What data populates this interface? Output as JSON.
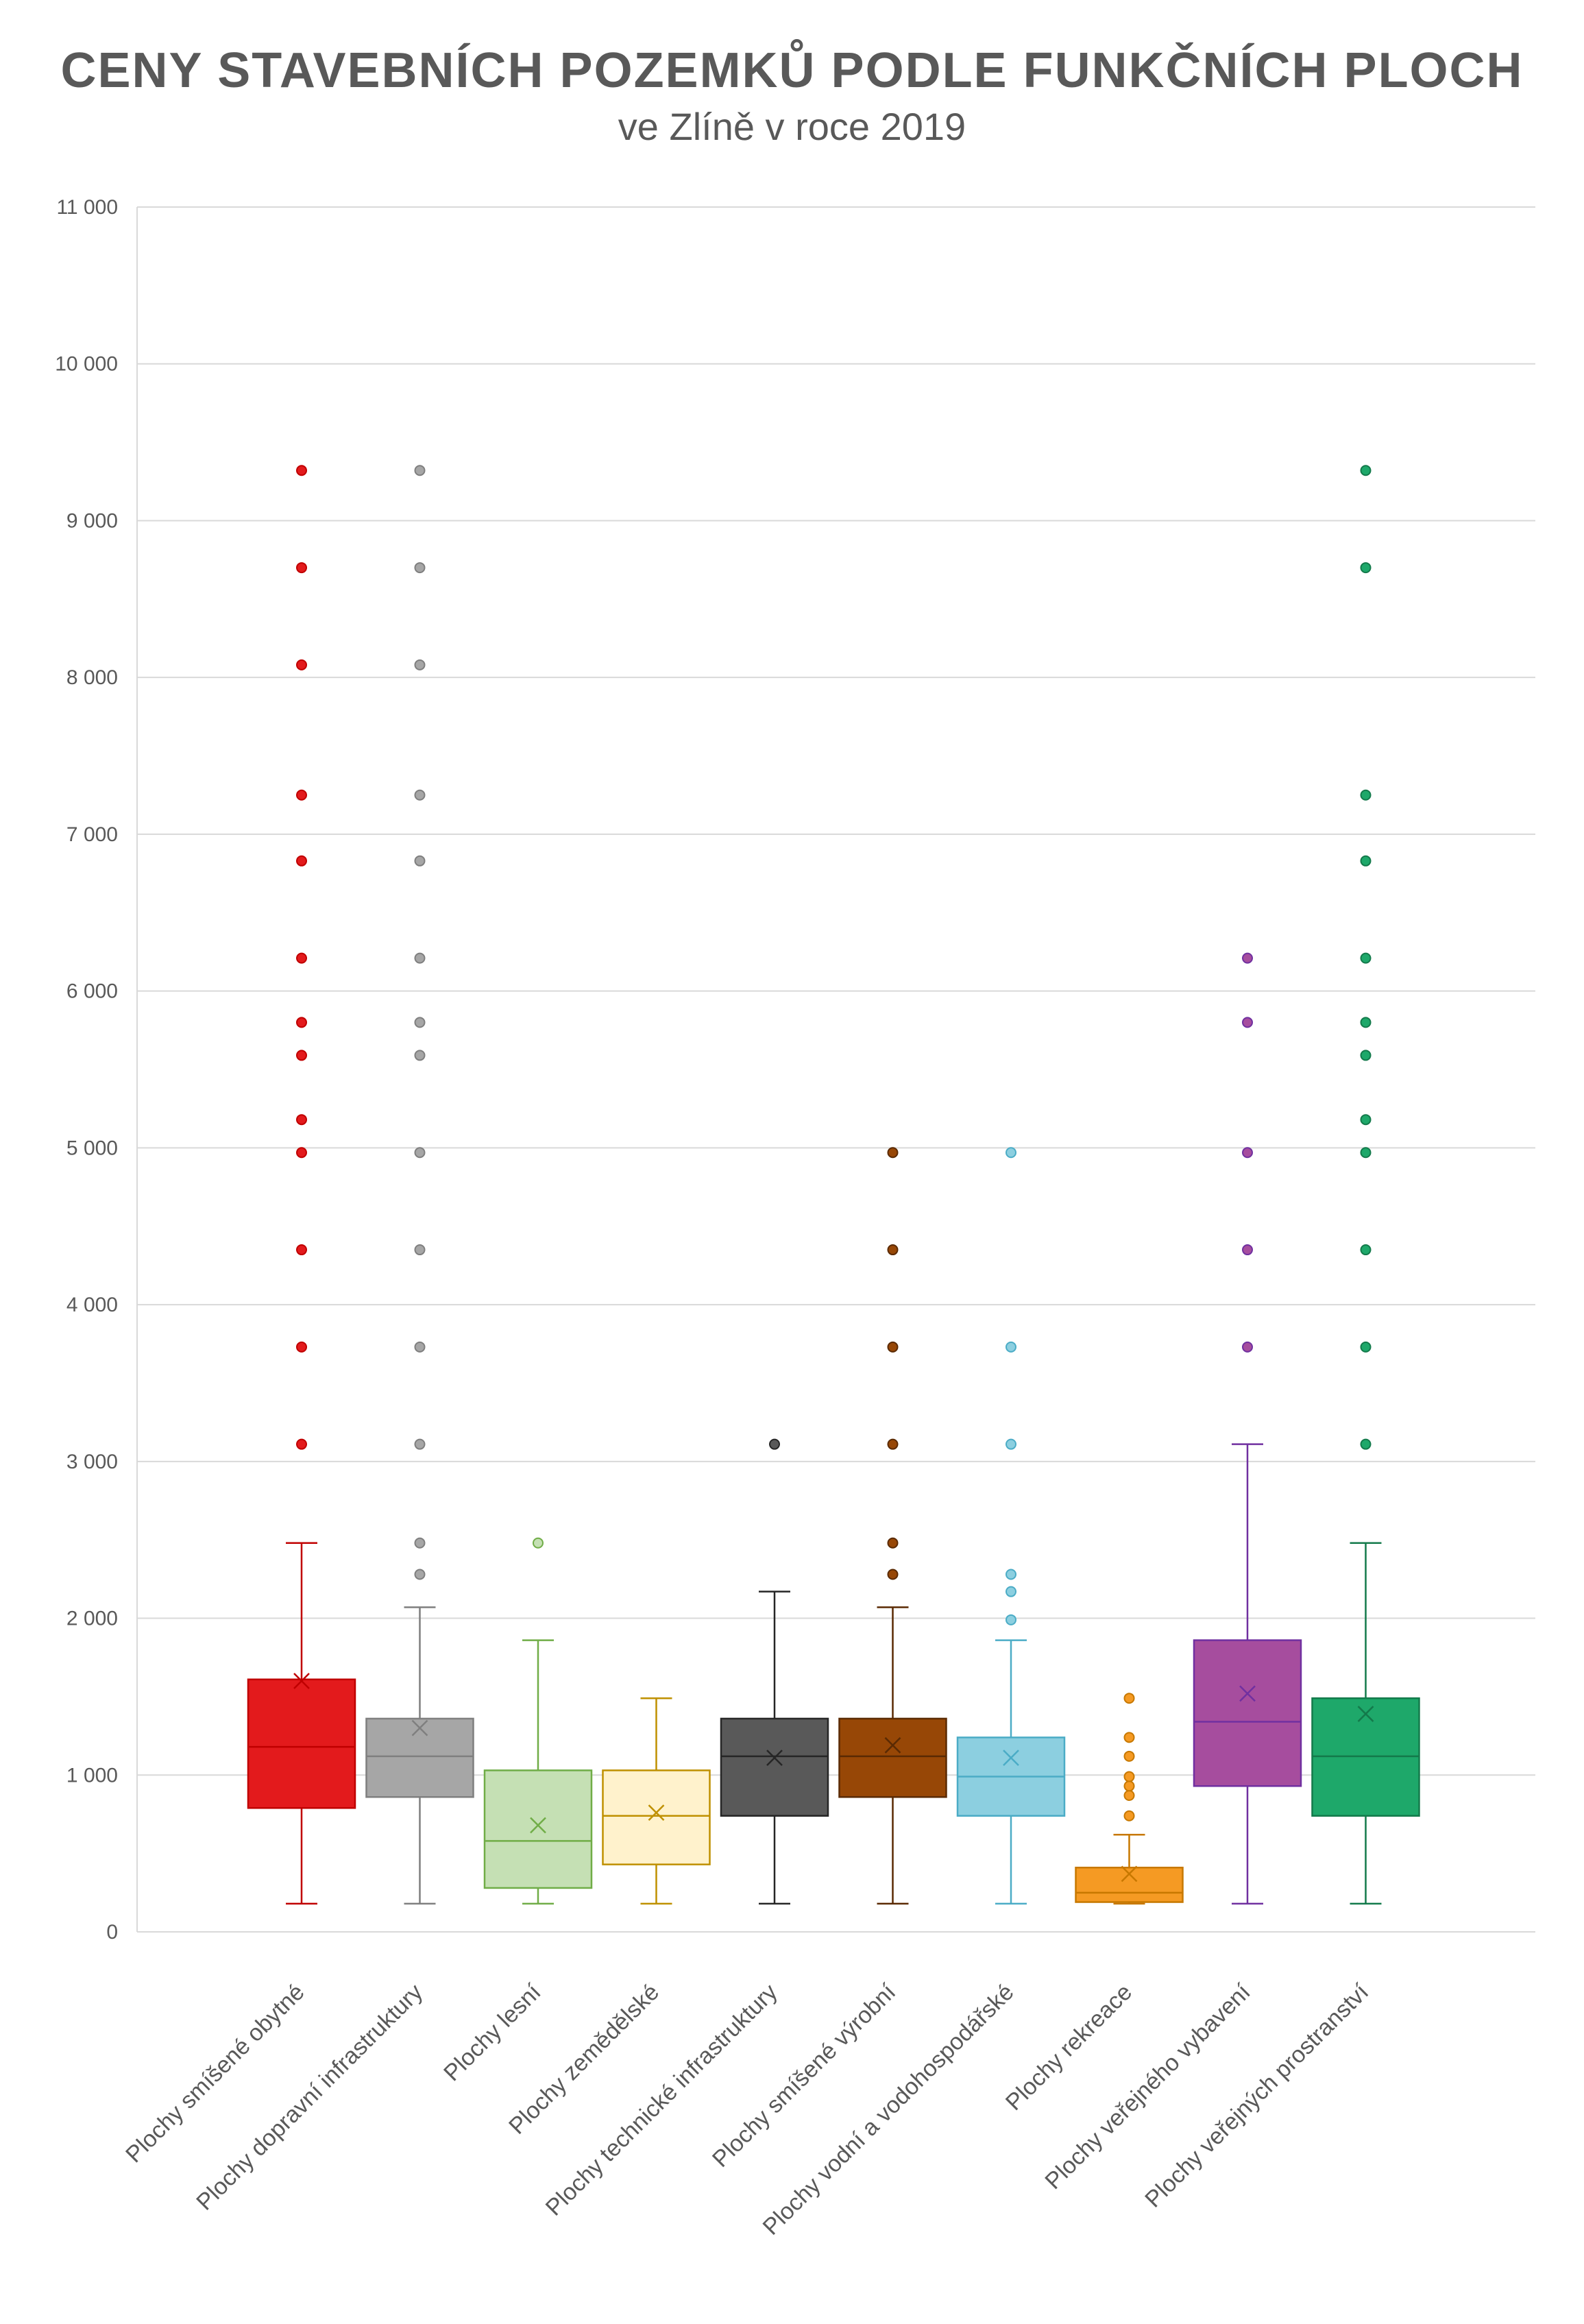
{
  "chart_data": {
    "type": "boxplot",
    "title": "CENY STAVEBNÍCH POZEMKŮ PODLE FUNKČNÍCH PLOCH",
    "subtitle": "ve Zlíně v roce 2019",
    "xlabel": "",
    "ylabel": "",
    "ylim": [
      0,
      11000
    ],
    "y_ticks": [
      {
        "value": 0,
        "label": "0"
      },
      {
        "value": 1000,
        "label": "1 000"
      },
      {
        "value": 2000,
        "label": "2 000"
      },
      {
        "value": 3000,
        "label": "3 000"
      },
      {
        "value": 4000,
        "label": "4 000"
      },
      {
        "value": 5000,
        "label": "5 000"
      },
      {
        "value": 6000,
        "label": "6 000"
      },
      {
        "value": 7000,
        "label": "7 000"
      },
      {
        "value": 8000,
        "label": "8 000"
      },
      {
        "value": 9000,
        "label": "9 000"
      },
      {
        "value": 10000,
        "label": "10 000"
      },
      {
        "value": 11000,
        "label": "11 000"
      }
    ],
    "grid": true,
    "categories": [
      "Plochy smíšené obytné",
      "Plochy dopravní infrastruktury",
      "Plochy lesní",
      "Plochy zemědělské",
      "Plochy technické infrastruktury",
      "Plochy smíšené výrobní",
      "Plochy vodní a vodohospodářské",
      "Plochy rekreace",
      "Plochy veřejného vybavení",
      "Plochy veřejných prostranství"
    ],
    "series": [
      {
        "color": "#e31a1c",
        "stroke": "#c00000",
        "min": 180,
        "q1": 790,
        "median": 1180,
        "q3": 1610,
        "max": 2480,
        "mean": 1600,
        "outliers": [
          3110,
          3730,
          4350,
          4970,
          5180,
          5590,
          5800,
          6210,
          6830,
          7250,
          8080,
          8700,
          9320
        ]
      },
      {
        "color": "#a6a6a6",
        "stroke": "#7f7f7f",
        "min": 180,
        "q1": 860,
        "median": 1120,
        "q3": 1360,
        "max": 2070,
        "mean": 1300,
        "outliers": [
          2280,
          2480,
          3110,
          3730,
          4350,
          4970,
          5590,
          5800,
          6210,
          6830,
          7250,
          8080,
          8700,
          9320
        ]
      },
      {
        "color": "#c5e0b4",
        "stroke": "#70ad47",
        "min": 180,
        "q1": 280,
        "median": 580,
        "q3": 1030,
        "max": 1860,
        "mean": 680,
        "outliers": [
          2480
        ]
      },
      {
        "color": "#fff2cc",
        "stroke": "#bf9000",
        "min": 180,
        "q1": 430,
        "median": 740,
        "q3": 1030,
        "max": 1490,
        "mean": 760,
        "outliers": []
      },
      {
        "color": "#595959",
        "stroke": "#262626",
        "min": 180,
        "q1": 740,
        "median": 1120,
        "q3": 1360,
        "max": 2170,
        "mean": 1110,
        "outliers": [
          3110
        ]
      },
      {
        "color": "#974706",
        "stroke": "#5a2a03",
        "min": 180,
        "q1": 860,
        "median": 1120,
        "q3": 1360,
        "max": 2070,
        "mean": 1190,
        "outliers": [
          2280,
          2480,
          3110,
          3730,
          4350,
          4970
        ]
      },
      {
        "color": "#8ccfe0",
        "stroke": "#4bacc6",
        "min": 180,
        "q1": 740,
        "median": 990,
        "q3": 1240,
        "max": 1860,
        "mean": 1110,
        "outliers": [
          1990,
          2170,
          2280,
          3110,
          3730,
          4970
        ]
      },
      {
        "color": "#f59a23",
        "stroke": "#c77800",
        "min": 180,
        "q1": 190,
        "median": 250,
        "q3": 410,
        "max": 620,
        "mean": 370,
        "outliers": [
          740,
          870,
          930,
          990,
          1120,
          1240,
          1490
        ]
      },
      {
        "color": "#a64d9e",
        "stroke": "#7030a0",
        "min": 180,
        "q1": 930,
        "median": 1340,
        "q3": 1860,
        "max": 3110,
        "mean": 1520,
        "outliers": [
          3730,
          4350,
          4970,
          5800,
          6210
        ]
      },
      {
        "color": "#1ea86a",
        "stroke": "#137a4b",
        "min": 180,
        "q1": 740,
        "median": 1120,
        "q3": 1490,
        "max": 2480,
        "mean": 1390,
        "outliers": [
          3110,
          3730,
          4350,
          4970,
          5180,
          5590,
          5800,
          6210,
          6830,
          7250,
          8700,
          9320
        ]
      }
    ]
  }
}
